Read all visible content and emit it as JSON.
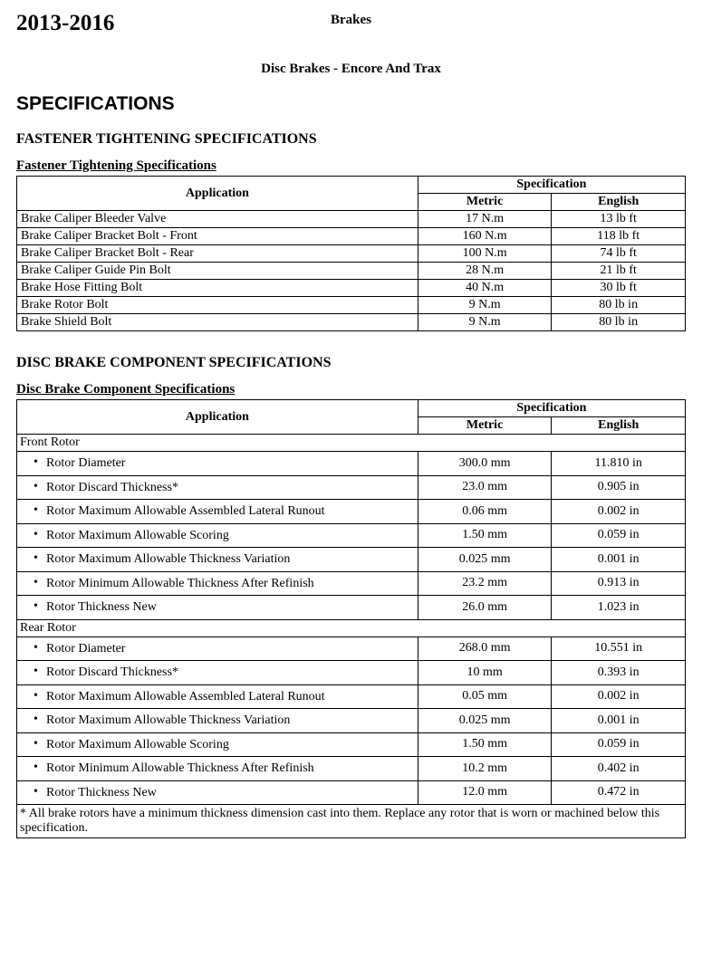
{
  "header": {
    "year_range": "2013-2016",
    "section": "Brakes",
    "subsection": "Disc Brakes - Encore And Trax"
  },
  "h1": "SPECIFICATIONS",
  "fastener": {
    "heading": "FASTENER TIGHTENING SPECIFICATIONS",
    "table_title": "Fastener Tightening Specifications",
    "columns": {
      "application": "Application",
      "spec_group": "Specification",
      "metric": "Metric",
      "english": "English"
    },
    "rows": [
      {
        "app": "Brake Caliper Bleeder Valve",
        "metric": "17 N.m",
        "english": "13 lb ft"
      },
      {
        "app": "Brake Caliper Bracket Bolt - Front",
        "metric": "160 N.m",
        "english": "118 lb ft"
      },
      {
        "app": "Brake Caliper Bracket Bolt - Rear",
        "metric": "100 N.m",
        "english": "74 lb ft"
      },
      {
        "app": "Brake Caliper Guide Pin Bolt",
        "metric": "28 N.m",
        "english": "21 lb ft"
      },
      {
        "app": "Brake Hose Fitting Bolt",
        "metric": "40 N.m",
        "english": "30 lb ft"
      },
      {
        "app": "Brake Rotor Bolt",
        "metric": "9 N.m",
        "english": "80 lb in"
      },
      {
        "app": "Brake Shield Bolt",
        "metric": "9 N.m",
        "english": "80 lb in"
      }
    ]
  },
  "component": {
    "heading": "DISC BRAKE COMPONENT SPECIFICATIONS",
    "table_title": "Disc Brake Component Specifications",
    "columns": {
      "application": "Application",
      "spec_group": "Specification",
      "metric": "Metric",
      "english": "English"
    },
    "sections": [
      {
        "label": "Front Rotor",
        "rows": [
          {
            "app": "Rotor Diameter",
            "metric": "300.0 mm",
            "english": "11.810 in"
          },
          {
            "app": "Rotor Discard Thickness*",
            "metric": "23.0 mm",
            "english": "0.905 in"
          },
          {
            "app": "Rotor Maximum Allowable Assembled Lateral Runout",
            "metric": "0.06 mm",
            "english": "0.002 in"
          },
          {
            "app": "Rotor Maximum Allowable Scoring",
            "metric": "1.50 mm",
            "english": "0.059 in"
          },
          {
            "app": "Rotor Maximum Allowable Thickness Variation",
            "metric": "0.025 mm",
            "english": "0.001 in"
          },
          {
            "app": "Rotor Minimum Allowable Thickness After Refinish",
            "metric": "23.2 mm",
            "english": "0.913 in"
          },
          {
            "app": "Rotor Thickness New",
            "metric": "26.0 mm",
            "english": "1.023 in"
          }
        ]
      },
      {
        "label": "Rear Rotor",
        "rows": [
          {
            "app": "Rotor Diameter",
            "metric": "268.0 mm",
            "english": "10.551 in"
          },
          {
            "app": "Rotor Discard Thickness*",
            "metric": "10 mm",
            "english": "0.393 in"
          },
          {
            "app": "Rotor Maximum Allowable Assembled Lateral Runout",
            "metric": "0.05 mm",
            "english": "0.002 in"
          },
          {
            "app": "Rotor Maximum Allowable Thickness Variation",
            "metric": "0.025 mm",
            "english": "0.001 in"
          },
          {
            "app": "Rotor Maximum Allowable Scoring",
            "metric": "1.50 mm",
            "english": "0.059 in"
          },
          {
            "app": "Rotor Minimum Allowable Thickness After Refinish",
            "metric": "10.2 mm",
            "english": "0.402 in"
          },
          {
            "app": "Rotor Thickness New",
            "metric": "12.0 mm",
            "english": "0.472 in"
          }
        ]
      }
    ],
    "footnote": "* All brake rotors have a minimum thickness dimension cast into them. Replace any rotor that is worn or machined below this specification."
  }
}
